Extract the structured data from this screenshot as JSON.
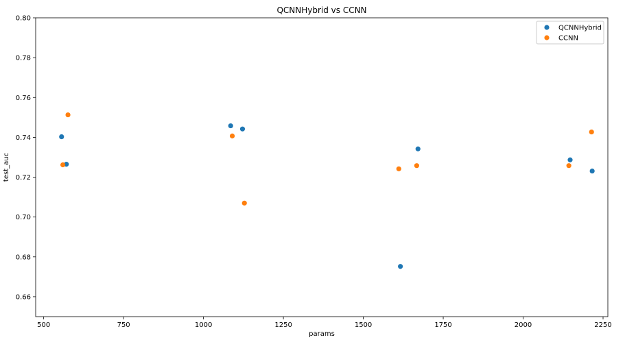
{
  "chart_data": {
    "type": "scatter",
    "title": "QCNNHybrid vs CCNN",
    "xlabel": "params",
    "ylabel": "test_auc",
    "xlim": [
      475,
      2265
    ],
    "ylim": [
      0.65,
      0.8
    ],
    "x_ticks": [
      500,
      750,
      1000,
      1250,
      1500,
      1750,
      2000,
      2250
    ],
    "y_ticks": [
      0.66,
      0.68,
      0.7,
      0.72,
      0.74,
      0.76,
      0.78,
      0.8
    ],
    "x_tick_labels": [
      "500",
      "750",
      "1000",
      "1250",
      "1500",
      "1750",
      "2000",
      "2250"
    ],
    "y_tick_labels": [
      "0.66",
      "0.68",
      "0.70",
      "0.72",
      "0.74",
      "0.76",
      "0.78",
      "0.80"
    ],
    "grid": false,
    "legend_position": "top-right",
    "series": [
      {
        "name": "QCNNHybrid",
        "color": "#1f77b4",
        "points": [
          {
            "x": 556,
            "y": 0.7403
          },
          {
            "x": 571,
            "y": 0.7265
          },
          {
            "x": 1085,
            "y": 0.7458
          },
          {
            "x": 1122,
            "y": 0.7442
          },
          {
            "x": 1616,
            "y": 0.6752
          },
          {
            "x": 1671,
            "y": 0.7342
          },
          {
            "x": 2147,
            "y": 0.7287
          },
          {
            "x": 2216,
            "y": 0.7231
          }
        ]
      },
      {
        "name": "CCNN",
        "color": "#ff7f0e",
        "points": [
          {
            "x": 560,
            "y": 0.7262
          },
          {
            "x": 576,
            "y": 0.7513
          },
          {
            "x": 1090,
            "y": 0.7407
          },
          {
            "x": 1128,
            "y": 0.707
          },
          {
            "x": 1611,
            "y": 0.7242
          },
          {
            "x": 1667,
            "y": 0.7258
          },
          {
            "x": 2143,
            "y": 0.7258
          },
          {
            "x": 2214,
            "y": 0.7427
          }
        ]
      }
    ]
  }
}
